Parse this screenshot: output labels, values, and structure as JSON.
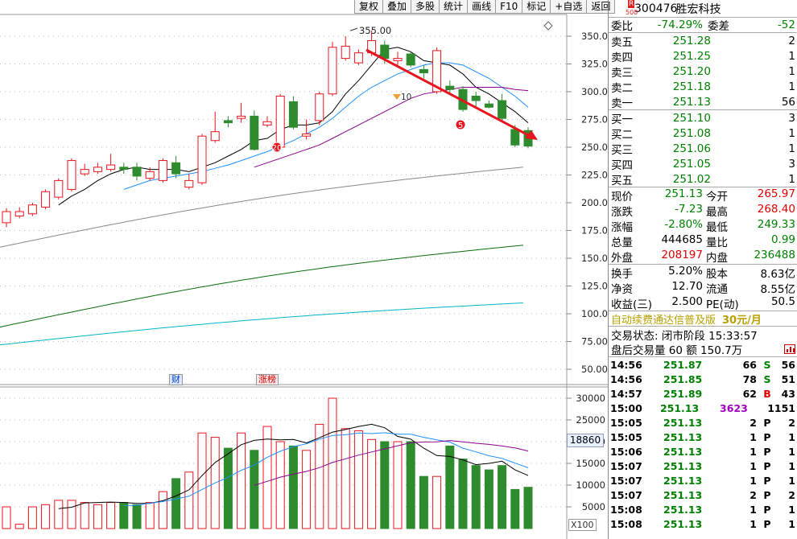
{
  "toolbar": [
    "复权",
    "叠加",
    "多股",
    "统计",
    "画线",
    "F10",
    "标记",
    "+自选",
    "返回"
  ],
  "chart_data": {
    "type": "candlestick",
    "price_axis": {
      "ticks": [
        350,
        325,
        300,
        275,
        250,
        225,
        200,
        175,
        150,
        125,
        100,
        75,
        50
      ],
      "labels": [
        "350.00",
        "325.00",
        "300.00",
        "275.00",
        "250.00",
        "225.00",
        "200.00",
        "175.00",
        "150.00",
        "125.00",
        "100.00",
        "75.00",
        "50.00"
      ]
    },
    "volume_axis": {
      "ticks": [
        30000,
        25000,
        20000,
        15000,
        10000,
        5000
      ],
      "labels": [
        "30000",
        "25000",
        "20000",
        "15000",
        "10000",
        "5000"
      ],
      "current": "18860",
      "unit": "X100"
    },
    "candles": [
      {
        "o": 182,
        "h": 195,
        "l": 178,
        "c": 192
      },
      {
        "o": 188,
        "h": 196,
        "l": 186,
        "c": 192
      },
      {
        "o": 190,
        "h": 200,
        "l": 188,
        "c": 198
      },
      {
        "o": 196,
        "h": 212,
        "l": 194,
        "c": 210
      },
      {
        "o": 205,
        "h": 222,
        "l": 203,
        "c": 220
      },
      {
        "o": 212,
        "h": 240,
        "l": 210,
        "c": 238
      },
      {
        "o": 226,
        "h": 235,
        "l": 224,
        "c": 230
      },
      {
        "o": 228,
        "h": 236,
        "l": 226,
        "c": 232
      },
      {
        "o": 230,
        "h": 244,
        "l": 228,
        "c": 234
      },
      {
        "o": 232,
        "h": 236,
        "l": 226,
        "c": 230
      },
      {
        "o": 232,
        "h": 236,
        "l": 220,
        "c": 224
      },
      {
        "o": 222,
        "h": 232,
        "l": 220,
        "c": 228
      },
      {
        "o": 220,
        "h": 240,
        "l": 218,
        "c": 238
      },
      {
        "o": 236,
        "h": 242,
        "l": 222,
        "c": 226
      },
      {
        "o": 214,
        "h": 226,
        "l": 212,
        "c": 220
      },
      {
        "o": 218,
        "h": 262,
        "l": 216,
        "c": 260
      },
      {
        "o": 256,
        "h": 282,
        "l": 254,
        "c": 264
      },
      {
        "o": 274,
        "h": 278,
        "l": 268,
        "c": 272
      },
      {
        "o": 276,
        "h": 290,
        "l": 272,
        "c": 278
      },
      {
        "o": 278,
        "h": 283,
        "l": 247,
        "c": 248
      },
      {
        "o": 270,
        "h": 278,
        "l": 268,
        "c": 273
      },
      {
        "o": 250,
        "h": 298,
        "l": 248,
        "c": 296
      },
      {
        "o": 291,
        "h": 296,
        "l": 266,
        "c": 268
      },
      {
        "o": 260,
        "h": 275,
        "l": 257,
        "c": 262
      },
      {
        "o": 274,
        "h": 300,
        "l": 270,
        "c": 298
      },
      {
        "o": 298,
        "h": 345,
        "l": 296,
        "c": 340
      },
      {
        "o": 330,
        "h": 350,
        "l": 328,
        "c": 341
      },
      {
        "o": 326,
        "h": 338,
        "l": 324,
        "c": 335
      },
      {
        "o": 335,
        "h": 355,
        "l": 332,
        "c": 346
      },
      {
        "o": 342,
        "h": 346,
        "l": 325,
        "c": 330
      },
      {
        "o": 328,
        "h": 336,
        "l": 322,
        "c": 330
      },
      {
        "o": 334,
        "h": 336,
        "l": 322,
        "c": 324
      },
      {
        "o": 320,
        "h": 324,
        "l": 312,
        "c": 317
      },
      {
        "o": 300,
        "h": 340,
        "l": 298,
        "c": 337
      },
      {
        "o": 305,
        "h": 310,
        "l": 298,
        "c": 302
      },
      {
        "o": 302,
        "h": 305,
        "l": 282,
        "c": 284
      },
      {
        "o": 296,
        "h": 300,
        "l": 286,
        "c": 292
      },
      {
        "o": 289,
        "h": 292,
        "l": 285,
        "c": 286
      },
      {
        "o": 292,
        "h": 298,
        "l": 274,
        "c": 276
      },
      {
        "o": 266,
        "h": 270,
        "l": 250,
        "c": 252
      },
      {
        "o": 265,
        "h": 268,
        "l": 249,
        "c": 251
      }
    ],
    "volumes": [
      5000,
      1000,
      5000,
      5500,
      6500,
      6500,
      6000,
      5500,
      6000,
      6000,
      5500,
      6000,
      8500,
      11500,
      13000,
      22000,
      21000,
      18500,
      22000,
      18000,
      23500,
      20000,
      19000,
      18000,
      24000,
      30000,
      23000,
      22500,
      20500,
      20000,
      20000,
      20000,
      12000,
      12000,
      19000,
      16000,
      14500,
      13500,
      14500,
      9000,
      9500
    ],
    "ma_lines": [
      {
        "color": "#000000",
        "values": [
          null,
          null,
          null,
          null,
          198,
          206,
          212,
          220,
          226,
          230,
          232,
          230,
          230,
          230,
          228,
          232,
          236,
          242,
          248,
          256,
          258,
          266,
          270,
          270,
          272,
          282,
          298,
          310,
          324,
          338,
          340,
          336,
          328,
          326,
          324,
          316,
          304,
          298,
          290,
          282,
          272
        ]
      },
      {
        "color": "#1e90ff",
        "values": [
          null,
          null,
          null,
          null,
          null,
          null,
          null,
          null,
          null,
          212,
          216,
          220,
          222,
          224,
          226,
          228,
          231,
          234,
          238,
          242,
          246,
          251,
          256,
          262,
          268,
          276,
          286,
          296,
          304,
          310,
          316,
          320,
          324,
          326,
          326,
          324,
          318,
          312,
          304,
          296,
          286
        ]
      },
      {
        "color": "#8b008b",
        "values": [
          null,
          null,
          null,
          null,
          null,
          null,
          null,
          null,
          null,
          null,
          null,
          null,
          null,
          null,
          null,
          null,
          null,
          null,
          null,
          232,
          236,
          240,
          244,
          248,
          252,
          258,
          264,
          270,
          276,
          282,
          288,
          294,
          298,
          300,
          302,
          304,
          304,
          304,
          304,
          302,
          301
        ]
      }
    ],
    "long_ma_lines": [
      {
        "color": "#888888",
        "from": 160,
        "to": 240
      },
      {
        "color": "#0a6e0a",
        "from": 88,
        "to": 170
      },
      {
        "color": "#00b4c8",
        "from": 72,
        "to": 114
      }
    ],
    "annotations": {
      "high_label": "355.00",
      "marker_10": "10",
      "marker_20": "20",
      "marker_5": "5",
      "tag_fin": "财",
      "tag_zb": "涨榜"
    }
  },
  "panel": {
    "code": "300476",
    "name": "胜宏科技",
    "logo_r": "R",
    "logo_n": "500",
    "weibi_label": "委比",
    "weibi": "-74.29%",
    "weicha_label": "委差",
    "weicha": "-52",
    "sells": [
      {
        "label": "卖五",
        "price": "251.28",
        "vol": "2"
      },
      {
        "label": "卖四",
        "price": "251.25",
        "vol": "1"
      },
      {
        "label": "卖三",
        "price": "251.20",
        "vol": "1"
      },
      {
        "label": "卖二",
        "price": "251.18",
        "vol": "1"
      },
      {
        "label": "卖一",
        "price": "251.13",
        "vol": "56"
      }
    ],
    "buys": [
      {
        "label": "买一",
        "price": "251.10",
        "vol": "3"
      },
      {
        "label": "买二",
        "price": "251.08",
        "vol": "1"
      },
      {
        "label": "买三",
        "price": "251.06",
        "vol": "1"
      },
      {
        "label": "买四",
        "price": "251.05",
        "vol": "3"
      },
      {
        "label": "买五",
        "price": "251.02",
        "vol": "1"
      }
    ],
    "q1": [
      {
        "l1": "现价",
        "v1": "251.13",
        "c1": "green",
        "l2": "今开",
        "v2": "265.97",
        "c2": "red"
      },
      {
        "l1": "涨跌",
        "v1": "-7.23",
        "c1": "green",
        "l2": "最高",
        "v2": "268.40",
        "c2": "red"
      },
      {
        "l1": "涨幅",
        "v1": "-2.80%",
        "c1": "green",
        "l2": "最低",
        "v2": "249.33",
        "c2": "green"
      },
      {
        "l1": "总量",
        "v1": "444685",
        "c1": "",
        "l2": "量比",
        "v2": "0.99",
        "c2": "green"
      },
      {
        "l1": "外盘",
        "v1": "208197",
        "c1": "red",
        "l2": "内盘",
        "v2": "236488",
        "c2": "green"
      }
    ],
    "q2": [
      {
        "l1": "换手",
        "v1": "5.20%",
        "l2": "股本",
        "v2": "8.63亿"
      },
      {
        "l1": "净资",
        "v1": "12.70",
        "l2": "流通",
        "v2": "8.55亿"
      },
      {
        "l1": "收益(三)",
        "v1": "2.500",
        "l2": "PE(动)",
        "v2": "50.5"
      }
    ],
    "ad_text": "自动续费通达信普及版",
    "ad_price": "30元/月",
    "trade_status": "交易状态: 闭市阶段 15:33:57",
    "after_hours": "盘后交易量 60 额 150.7万",
    "ticks": [
      {
        "t": "14:56",
        "p": "251.87",
        "v": "66",
        "vc": "",
        "f": "S",
        "fc": "green",
        "n": "56"
      },
      {
        "t": "14:56",
        "p": "251.85",
        "v": "78",
        "vc": "",
        "f": "S",
        "fc": "green",
        "n": "51"
      },
      {
        "t": "14:57",
        "p": "251.89",
        "v": "62",
        "vc": "",
        "f": "B",
        "fc": "red",
        "n": "43"
      },
      {
        "t": "15:00",
        "p": "251.13",
        "v": "3623",
        "vc": "purple",
        "f": "",
        "fc": "",
        "n": "1151"
      },
      {
        "t": "15:05",
        "p": "251.13",
        "v": "2",
        "vc": "",
        "f": "P",
        "fc": "",
        "n": "2"
      },
      {
        "t": "15:05",
        "p": "251.13",
        "v": "1",
        "vc": "",
        "f": "P",
        "fc": "",
        "n": "1"
      },
      {
        "t": "15:06",
        "p": "251.13",
        "v": "1",
        "vc": "",
        "f": "P",
        "fc": "",
        "n": "1"
      },
      {
        "t": "15:07",
        "p": "251.13",
        "v": "1",
        "vc": "",
        "f": "P",
        "fc": "",
        "n": "1"
      },
      {
        "t": "15:07",
        "p": "251.13",
        "v": "1",
        "vc": "",
        "f": "P",
        "fc": "",
        "n": "1"
      },
      {
        "t": "15:07",
        "p": "251.13",
        "v": "2",
        "vc": "",
        "f": "P",
        "fc": "",
        "n": "2"
      },
      {
        "t": "15:08",
        "p": "251.13",
        "v": "1",
        "vc": "",
        "f": "P",
        "fc": "",
        "n": "1"
      },
      {
        "t": "15:08",
        "p": "251.13",
        "v": "1",
        "vc": "",
        "f": "P",
        "fc": "",
        "n": "1"
      }
    ]
  }
}
